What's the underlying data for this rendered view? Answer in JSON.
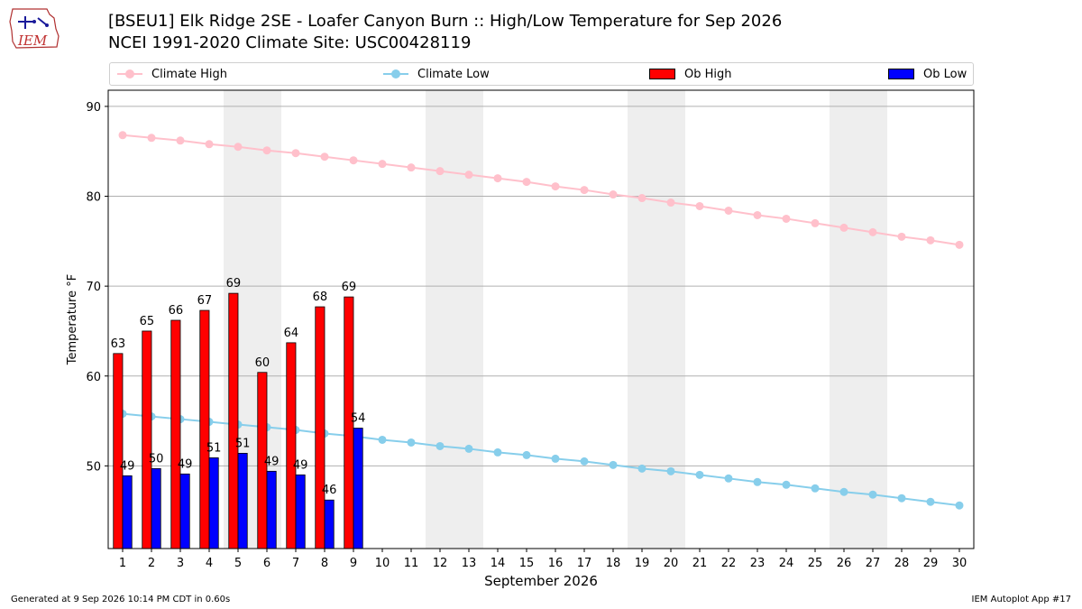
{
  "header": {
    "title_line1": "[BSEU1] Elk Ridge 2SE - Loafer Canyon Burn :: High/Low Temperature for Sep 2026",
    "title_line2": "NCEI 1991-2020 Climate Site: USC00428119",
    "logo_text": "IEM"
  },
  "footer": {
    "generated": "Generated at 9 Sep 2026 10:14 PM CDT in 0.60s",
    "app": "IEM Autoplot App #17"
  },
  "chart_data": {
    "type": "bar",
    "xlabel": "September 2026",
    "ylabel": "Temperature °F",
    "xlim": [
      0.5,
      30.5
    ],
    "ylim": [
      40.8,
      91.8
    ],
    "yticks": [
      50,
      60,
      70,
      80,
      90
    ],
    "days": [
      1,
      2,
      3,
      4,
      5,
      6,
      7,
      8,
      9,
      10,
      11,
      12,
      13,
      14,
      15,
      16,
      17,
      18,
      19,
      20,
      21,
      22,
      23,
      24,
      25,
      26,
      27,
      28,
      29,
      30
    ],
    "weekend_shading": [
      [
        4.5,
        6.5
      ],
      [
        11.5,
        13.5
      ],
      [
        18.5,
        20.5
      ],
      [
        25.5,
        27.5
      ]
    ],
    "grid": "horizontal",
    "legend": {
      "placement": "top",
      "entries": [
        "Climate High",
        "Climate Low",
        "Ob High",
        "Ob Low"
      ]
    },
    "colors": {
      "climate_high": "#ffc0cb",
      "climate_low": "#87ceeb",
      "ob_high": "#ff0000",
      "ob_low": "#0000ff",
      "shade": "#eeeeee",
      "grid": "#b0b0b0"
    },
    "series": [
      {
        "name": "Climate High",
        "kind": "line",
        "values": [
          86.8,
          86.5,
          86.2,
          85.8,
          85.5,
          85.1,
          84.8,
          84.4,
          84.0,
          83.6,
          83.2,
          82.8,
          82.4,
          82.0,
          81.6,
          81.1,
          80.7,
          80.2,
          79.8,
          79.3,
          78.9,
          78.4,
          77.9,
          77.5,
          77.0,
          76.5,
          76.0,
          75.5,
          75.1,
          74.6
        ]
      },
      {
        "name": "Climate Low",
        "kind": "line",
        "values": [
          55.8,
          55.5,
          55.2,
          54.9,
          54.6,
          54.3,
          54.0,
          53.6,
          53.3,
          52.9,
          52.6,
          52.2,
          51.9,
          51.5,
          51.2,
          50.8,
          50.5,
          50.1,
          49.7,
          49.4,
          49.0,
          48.6,
          48.2,
          47.9,
          47.5,
          47.1,
          46.8,
          46.4,
          46.0,
          45.6
        ]
      },
      {
        "name": "Ob High",
        "kind": "bar",
        "values": [
          62.5,
          65.0,
          66.2,
          67.3,
          69.2,
          60.4,
          63.7,
          67.7,
          68.8
        ],
        "labels": [
          "63",
          "65",
          "66",
          "67",
          "69",
          "60",
          "64",
          "68",
          "69"
        ]
      },
      {
        "name": "Ob Low",
        "kind": "bar",
        "values": [
          48.9,
          49.7,
          49.1,
          50.9,
          51.4,
          49.4,
          49.0,
          46.2,
          54.2
        ],
        "labels": [
          "49",
          "50",
          "49",
          "51",
          "51",
          "49",
          "49",
          "46",
          "54"
        ]
      }
    ]
  }
}
